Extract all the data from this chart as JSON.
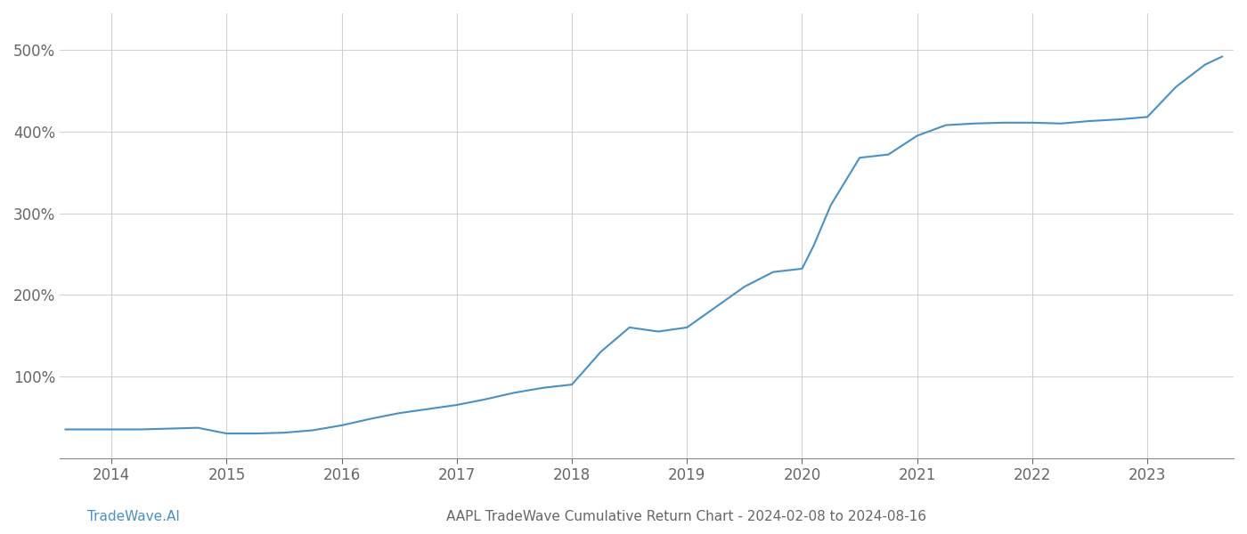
{
  "title": "AAPL TradeWave Cumulative Return Chart - 2024-02-08 to 2024-08-16",
  "watermark": "TradeWave.AI",
  "line_color": "#4a90c4",
  "background_color": "#ffffff",
  "grid_color": "#cccccc",
  "axis_color": "#888888",
  "text_color": "#666666",
  "x_years": [
    2014,
    2015,
    2016,
    2017,
    2018,
    2019,
    2020,
    2021,
    2022,
    2023
  ],
  "x_data": [
    2013.6,
    2014.0,
    2014.25,
    2014.5,
    2014.75,
    2015.0,
    2015.25,
    2015.5,
    2015.75,
    2016.0,
    2016.25,
    2016.5,
    2016.75,
    2017.0,
    2017.25,
    2017.5,
    2017.75,
    2018.0,
    2018.25,
    2018.5,
    2018.75,
    2019.0,
    2019.25,
    2019.5,
    2019.75,
    2020.0,
    2020.1,
    2020.25,
    2020.5,
    2020.75,
    2021.0,
    2021.25,
    2021.5,
    2021.75,
    2022.0,
    2022.25,
    2022.5,
    2022.75,
    2023.0,
    2023.25,
    2023.5,
    2023.65
  ],
  "y_data": [
    35,
    35,
    35,
    36,
    37,
    30,
    30,
    31,
    34,
    40,
    48,
    55,
    60,
    65,
    72,
    80,
    86,
    90,
    130,
    160,
    155,
    160,
    185,
    210,
    228,
    232,
    260,
    310,
    368,
    372,
    395,
    408,
    410,
    411,
    411,
    410,
    413,
    415,
    418,
    455,
    482,
    492
  ],
  "yticks": [
    100,
    200,
    300,
    400,
    500
  ],
  "ylim": [
    0,
    545
  ],
  "xlim": [
    2013.55,
    2023.75
  ],
  "title_fontsize": 11,
  "watermark_fontsize": 11,
  "tick_fontsize": 12,
  "line_width": 1.5
}
